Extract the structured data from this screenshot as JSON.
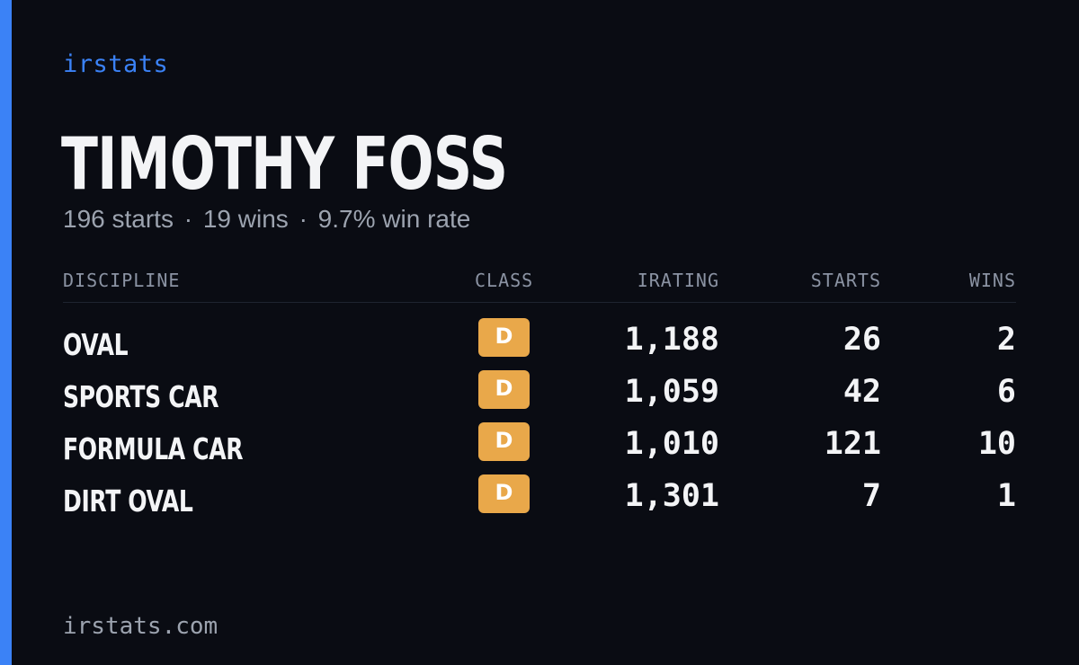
{
  "colors": {
    "background": "#0a0c13",
    "accent": "#3b82f6",
    "badge_class_d": "#e9a84a",
    "text_primary": "#f3f4f6",
    "text_muted": "#9ca3af"
  },
  "brand": "irstats",
  "player": {
    "name": "TIMOTHY FOSS"
  },
  "summary": {
    "starts": "196 starts",
    "wins": "19 wins",
    "win_rate": "9.7% win rate",
    "separator": "·"
  },
  "table": {
    "headers": {
      "discipline": "DISCIPLINE",
      "class": "CLASS",
      "irating": "IRATING",
      "starts": "STARTS",
      "wins": "WINS"
    },
    "rows": [
      {
        "discipline": "OVAL",
        "class": "D",
        "irating": "1,188",
        "starts": "26",
        "wins": "2"
      },
      {
        "discipline": "SPORTS CAR",
        "class": "D",
        "irating": "1,059",
        "starts": "42",
        "wins": "6"
      },
      {
        "discipline": "FORMULA CAR",
        "class": "D",
        "irating": "1,010",
        "starts": "121",
        "wins": "10"
      },
      {
        "discipline": "DIRT OVAL",
        "class": "D",
        "irating": "1,301",
        "starts": "7",
        "wins": "1"
      }
    ]
  },
  "footer": {
    "site": "irstats.com"
  }
}
